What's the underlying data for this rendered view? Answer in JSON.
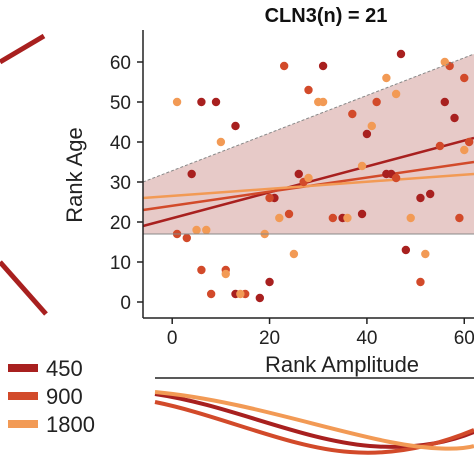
{
  "chart_data": {
    "type": "scatter",
    "title": "CLN3(n) = 21",
    "xlabel": "Rank Amplitude",
    "ylabel": "Rank Age",
    "xlim": [
      -6,
      62
    ],
    "ylim": [
      -4,
      68
    ],
    "xticks": [
      "0",
      "20",
      "40",
      "60"
    ],
    "yticks": [
      "0",
      "10",
      "20",
      "30",
      "40",
      "50",
      "60"
    ],
    "grid": false,
    "legend": {
      "placement": "bottom-left",
      "entries": [
        {
          "label": "450",
          "color": "#a8201f"
        },
        {
          "label": "900",
          "color": "#d24a2a"
        },
        {
          "label": "1800",
          "color": "#f29a55"
        }
      ]
    },
    "confidence_band": {
      "color": "#c98a86",
      "upper": [
        [
          -6,
          30
        ],
        [
          62,
          62
        ]
      ],
      "lower": [
        [
          -6,
          17
        ],
        [
          62,
          17
        ]
      ]
    },
    "series": [
      {
        "name": "450",
        "color": "#a8201f",
        "fit": [
          [
            -6,
            19
          ],
          [
            62,
            41
          ]
        ],
        "points": [
          [
            4,
            32
          ],
          [
            6,
            50
          ],
          [
            9,
            50
          ],
          [
            13,
            44
          ],
          [
            13,
            2
          ],
          [
            18,
            1
          ],
          [
            20,
            5
          ],
          [
            21,
            26
          ],
          [
            26,
            32
          ],
          [
            31,
            59
          ],
          [
            35,
            21
          ],
          [
            39,
            22
          ],
          [
            40,
            42
          ],
          [
            44,
            32
          ],
          [
            45,
            32
          ],
          [
            47,
            62
          ],
          [
            48,
            13
          ],
          [
            51,
            26
          ],
          [
            53,
            27
          ],
          [
            56,
            50
          ],
          [
            58,
            46
          ]
        ]
      },
      {
        "name": "900",
        "color": "#d24a2a",
        "fit": [
          [
            -6,
            23
          ],
          [
            62,
            35
          ]
        ],
        "points": [
          [
            1,
            17
          ],
          [
            6,
            8
          ],
          [
            8,
            2
          ],
          [
            11,
            8
          ],
          [
            15,
            2
          ],
          [
            20,
            26
          ],
          [
            23,
            59
          ],
          [
            24,
            22
          ],
          [
            27,
            30
          ],
          [
            28,
            53
          ],
          [
            33,
            21
          ],
          [
            37,
            47
          ],
          [
            42,
            50
          ],
          [
            46,
            31
          ],
          [
            51,
            5
          ],
          [
            55,
            39
          ],
          [
            57,
            59
          ],
          [
            59,
            21
          ],
          [
            60,
            56
          ],
          [
            61,
            40
          ],
          [
            3,
            16
          ]
        ]
      },
      {
        "name": "1800",
        "color": "#f29a55",
        "fit": [
          [
            -6,
            26
          ],
          [
            62,
            32
          ]
        ],
        "points": [
          [
            1,
            50
          ],
          [
            5,
            18
          ],
          [
            7,
            18
          ],
          [
            10,
            40
          ],
          [
            11,
            7
          ],
          [
            14,
            2
          ],
          [
            19,
            17
          ],
          [
            22,
            21
          ],
          [
            25,
            12
          ],
          [
            28,
            31
          ],
          [
            30,
            50
          ],
          [
            31,
            50
          ],
          [
            36,
            21
          ],
          [
            39,
            34
          ],
          [
            41,
            44
          ],
          [
            44,
            56
          ],
          [
            46,
            52
          ],
          [
            49,
            21
          ],
          [
            52,
            12
          ],
          [
            56,
            60
          ],
          [
            60,
            38
          ]
        ]
      }
    ]
  }
}
